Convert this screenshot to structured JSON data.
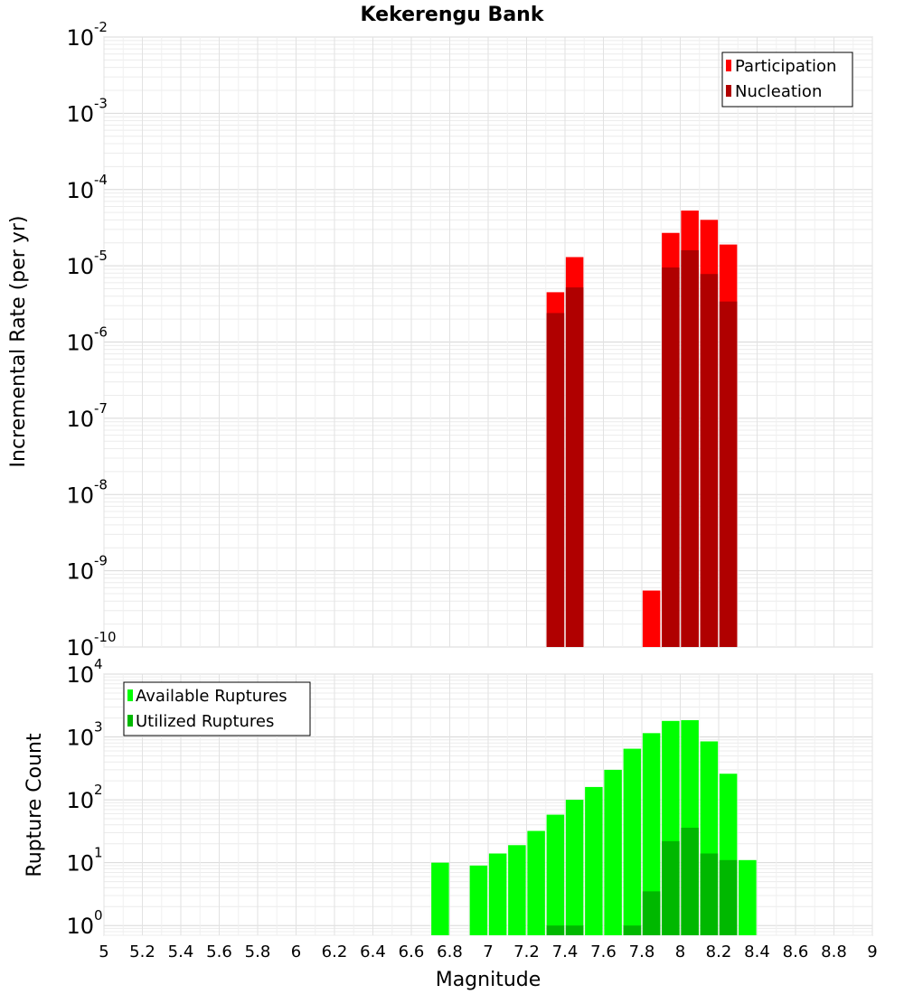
{
  "chart_data": [
    {
      "type": "bar",
      "title": "Kekerengu Bank",
      "xlabel": "Magnitude",
      "ylabel": "Incremental Rate (per yr)",
      "yscale": "log",
      "xlim": [
        5,
        9
      ],
      "ylim": [
        1e-10,
        0.01
      ],
      "legend_position": "top-right",
      "grid": true,
      "series": [
        {
          "name": "Participation",
          "color": "#ff0000",
          "x": [
            7.35,
            7.45,
            7.85,
            7.95,
            8.05,
            8.15,
            8.25
          ],
          "values": [
            4.5e-06,
            1.3e-05,
            5.5e-10,
            2.7e-05,
            5.3e-05,
            4e-05,
            1.9e-05
          ]
        },
        {
          "name": "Nucleation",
          "color": "#b00000",
          "x": [
            7.35,
            7.45,
            7.95,
            8.05,
            8.15,
            8.25
          ],
          "values": [
            2.4e-06,
            5.2e-06,
            9.5e-06,
            1.6e-05,
            7.8e-06,
            3.4e-06
          ]
        }
      ]
    },
    {
      "type": "bar",
      "xlabel": "Magnitude",
      "ylabel": "Rupture Count",
      "yscale": "log",
      "xlim": [
        5,
        9
      ],
      "ylim": [
        0.7,
        10000
      ],
      "legend_position": "top-left",
      "grid": true,
      "series": [
        {
          "name": "Available Ruptures",
          "color": "#00ff00",
          "x": [
            6.75,
            6.95,
            7.05,
            7.15,
            7.25,
            7.35,
            7.45,
            7.55,
            7.65,
            7.75,
            7.85,
            7.95,
            8.05,
            8.15,
            8.25,
            8.35
          ],
          "values": [
            10,
            9,
            14,
            19,
            32,
            58,
            100,
            160,
            300,
            650,
            1150,
            1800,
            1850,
            850,
            260,
            11
          ]
        },
        {
          "name": "Utilized Ruptures",
          "color": "#00b800",
          "x": [
            7.35,
            7.45,
            7.75,
            7.85,
            7.95,
            8.05,
            8.15,
            8.25
          ],
          "values": [
            1,
            1,
            1,
            3.5,
            22,
            36,
            14,
            11
          ]
        }
      ]
    }
  ],
  "x_ticks": [
    "5",
    "5.2",
    "5.4",
    "5.6",
    "5.8",
    "6",
    "6.2",
    "6.4",
    "6.6",
    "6.8",
    "7",
    "7.2",
    "7.4",
    "7.6",
    "7.8",
    "8",
    "8.2",
    "8.4",
    "8.6",
    "8.8",
    "9"
  ],
  "top_y_ticks": [
    {
      "base": "10",
      "exp": "-10"
    },
    {
      "base": "10",
      "exp": "-9"
    },
    {
      "base": "10",
      "exp": "-8"
    },
    {
      "base": "10",
      "exp": "-7"
    },
    {
      "base": "10",
      "exp": "-6"
    },
    {
      "base": "10",
      "exp": "-5"
    },
    {
      "base": "10",
      "exp": "-4"
    },
    {
      "base": "10",
      "exp": "-3"
    },
    {
      "base": "10",
      "exp": "-2"
    }
  ],
  "bottom_y_ticks": [
    {
      "base": "10",
      "exp": "0"
    },
    {
      "base": "10",
      "exp": "1"
    },
    {
      "base": "10",
      "exp": "2"
    },
    {
      "base": "10",
      "exp": "3"
    },
    {
      "base": "10",
      "exp": "4"
    }
  ]
}
